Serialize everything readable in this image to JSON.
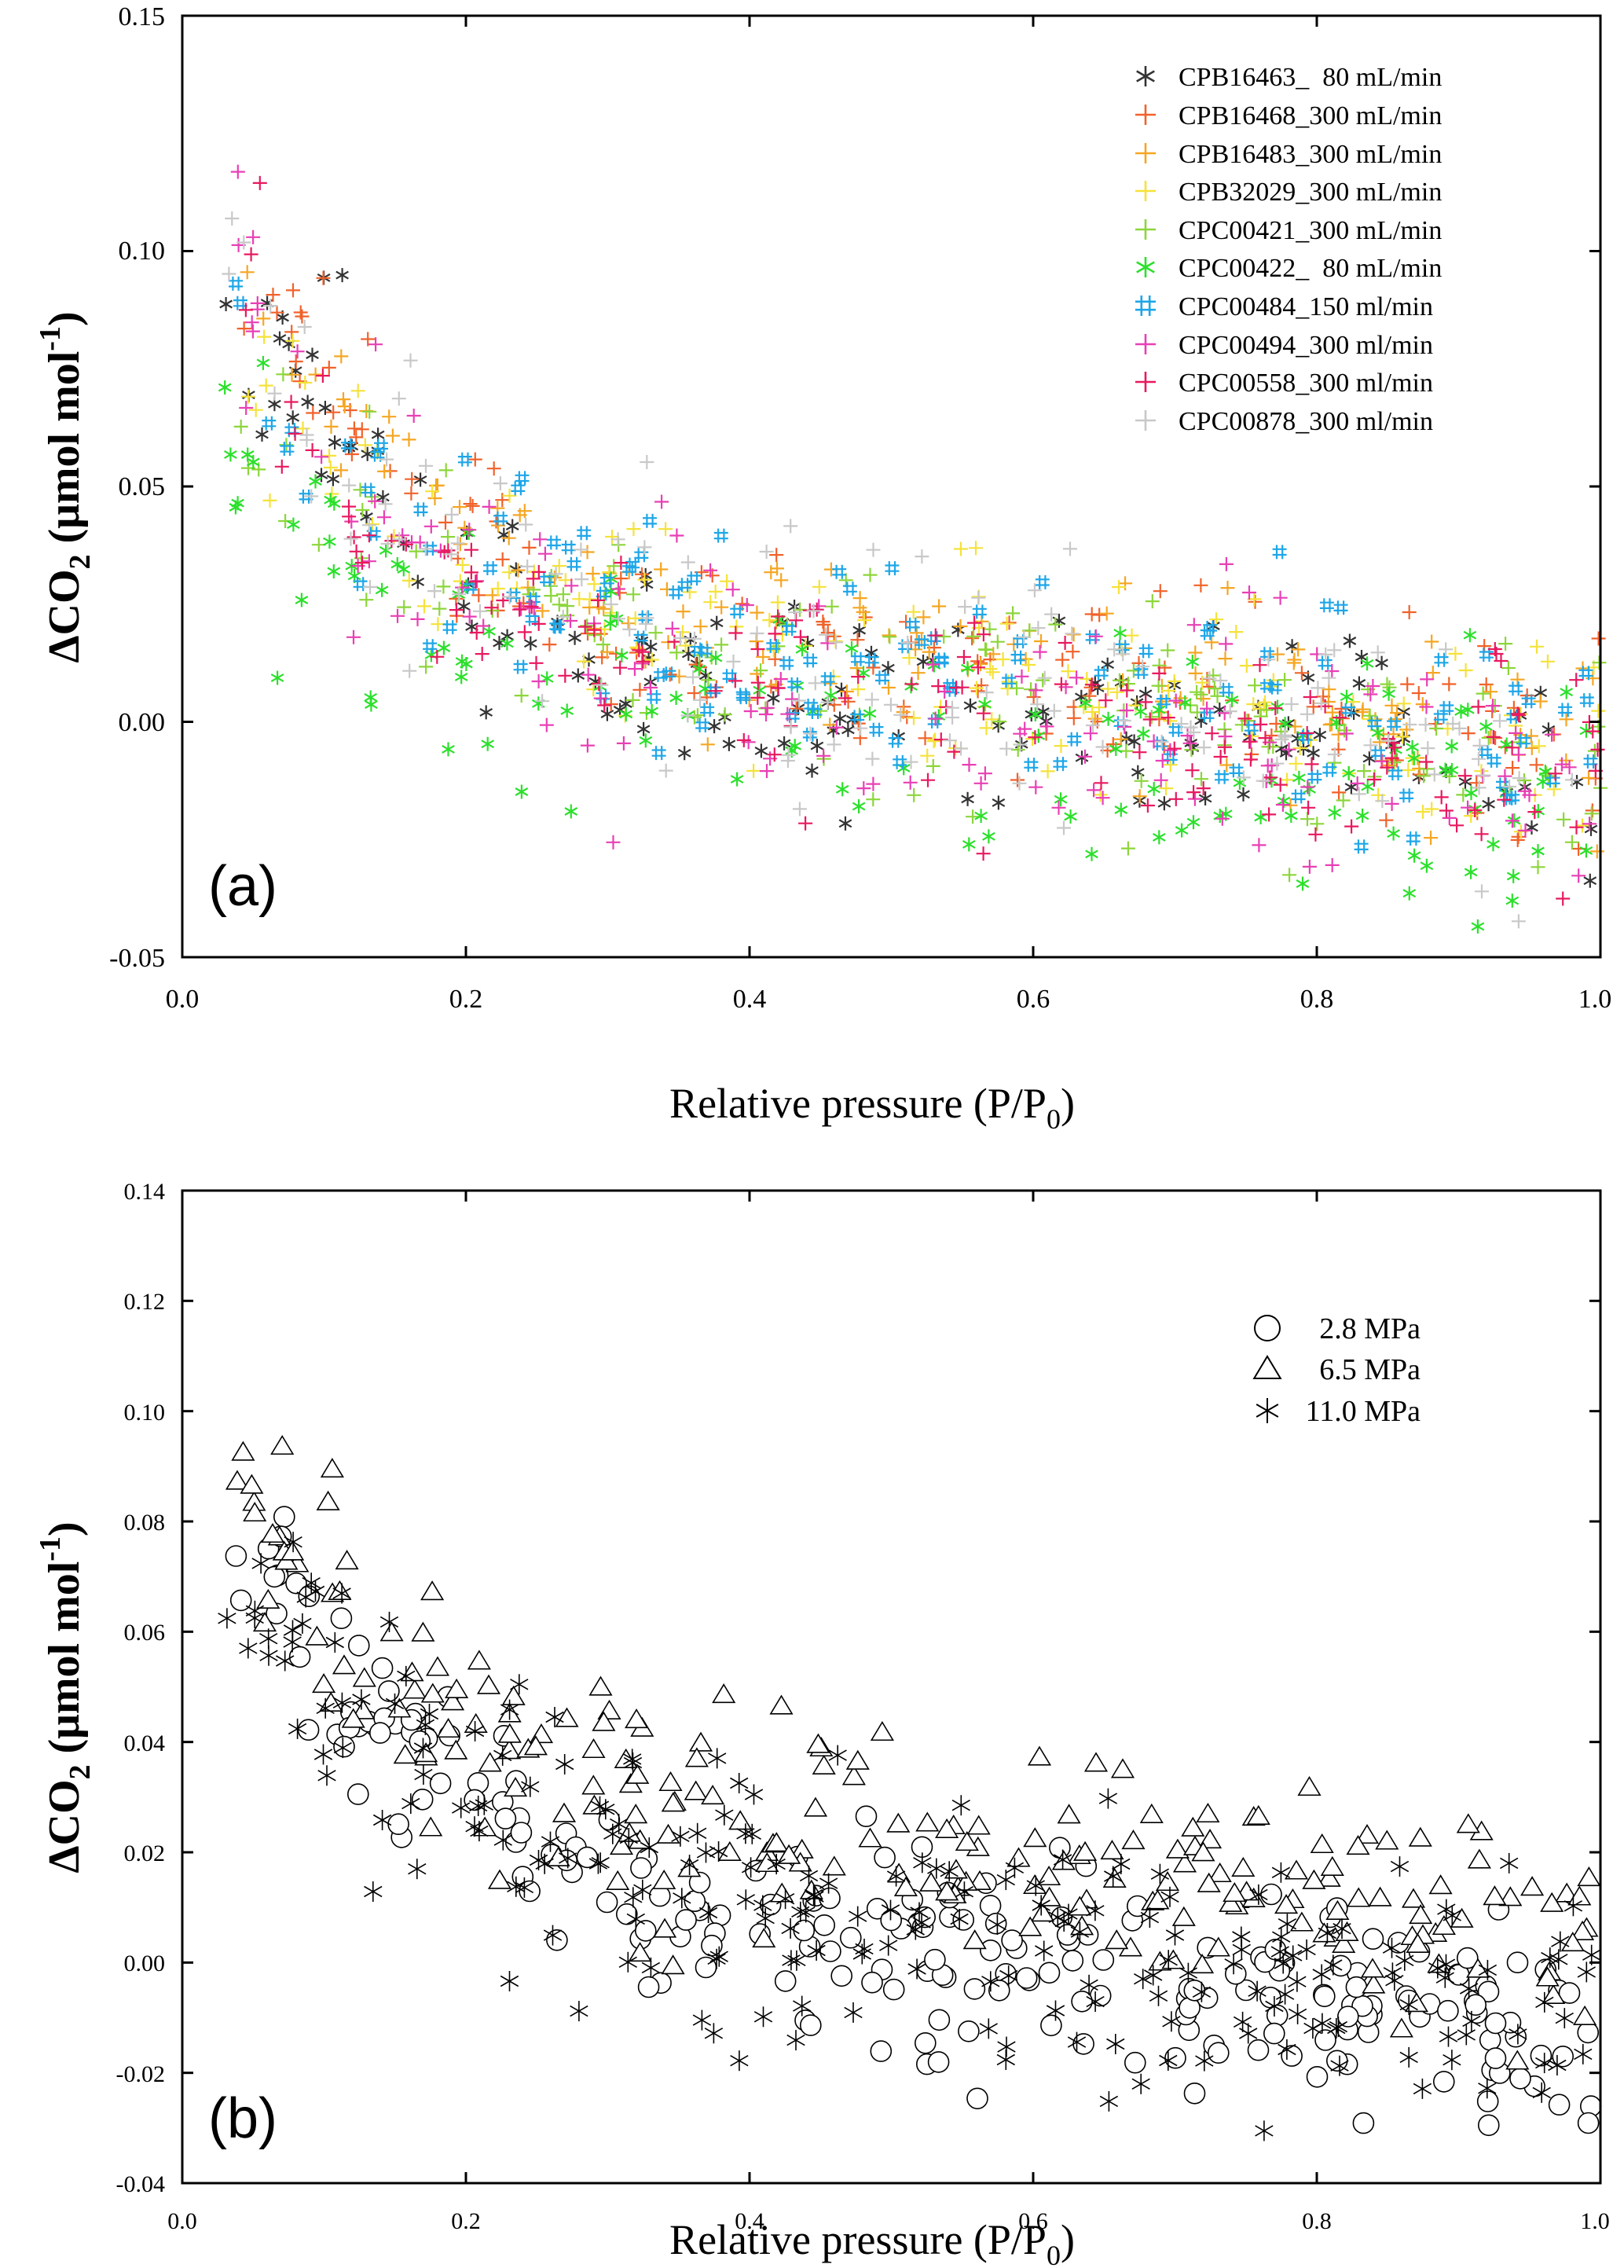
{
  "chart_data": [
    {
      "type": "scatter",
      "panel_label": "(a)",
      "xlabel": "Relative pressure (P/P",
      "xlabel_sub": "0",
      "xlabel_close": ")",
      "ylabel_pre": "ΔCO",
      "ylabel_sub": "2",
      "ylabel_unit": " (μmol mol",
      "ylabel_sup": "-1",
      "ylabel_close": ")",
      "xlim": [
        0.0,
        1.0
      ],
      "ylim": [
        -0.05,
        0.15
      ],
      "xticks": [
        "0.0",
        "0.2",
        "0.4",
        "0.6",
        "0.8",
        "1.0"
      ],
      "yticks": [
        "-0.05",
        "0.00",
        "0.05",
        "0.10",
        "0.15"
      ],
      "legend_position": "top-right",
      "series": [
        {
          "name": "CPB16463_  80 mL/min",
          "marker": "asterisk",
          "color": "#333333",
          "seed": 11,
          "y0": 0.12,
          "yend": -0.012,
          "spread": 0.011
        },
        {
          "name": "CPB16468_300 mL/min",
          "marker": "plus",
          "color": "#F0622A",
          "seed": 23,
          "y0": 0.14,
          "yend": -0.005,
          "spread": 0.01
        },
        {
          "name": "CPB16483_300 mL/min",
          "marker": "plus",
          "color": "#F5A623",
          "seed": 37,
          "y0": 0.13,
          "yend": -0.004,
          "spread": 0.01
        },
        {
          "name": "CPB32029_300 mL/min",
          "marker": "plus",
          "color": "#F5E23A",
          "seed": 41,
          "y0": 0.11,
          "yend": -0.006,
          "spread": 0.011
        },
        {
          "name": "CPC00421_300 mL/min",
          "marker": "plus",
          "color": "#8CD63A",
          "seed": 53,
          "y0": 0.09,
          "yend": -0.008,
          "spread": 0.011
        },
        {
          "name": "CPC00422_  80 mL/min",
          "marker": "asterisk",
          "color": "#2BE02B",
          "seed": 67,
          "y0": 0.075,
          "yend": -0.018,
          "spread": 0.013
        },
        {
          "name": "CPC00484_150 ml/min",
          "marker": "hash",
          "color": "#1EA6E8",
          "seed": 79,
          "y0": 0.1,
          "yend": -0.005,
          "spread": 0.011
        },
        {
          "name": "CPC00494_300 ml/min",
          "marker": "plus",
          "color": "#E83FB5",
          "seed": 83,
          "y0": 0.12,
          "yend": -0.012,
          "spread": 0.013
        },
        {
          "name": "CPC00558_300 ml/min",
          "marker": "plus",
          "color": "#E8195E",
          "seed": 97,
          "y0": 0.11,
          "yend": -0.015,
          "spread": 0.013
        },
        {
          "name": "CPC00878_300 ml/min",
          "marker": "plus",
          "color": "#C8C8C8",
          "seed": 101,
          "y0": 0.12,
          "yend": -0.008,
          "spread": 0.014
        }
      ]
    },
    {
      "type": "scatter",
      "panel_label": "(b)",
      "xlabel": "Relative pressure (P/P",
      "xlabel_sub": "0",
      "xlabel_close": ")",
      "ylabel_pre": "ΔCO",
      "ylabel_sub": "2",
      "ylabel_unit": " (μmol mol",
      "ylabel_sup": "-1",
      "ylabel_close": ")",
      "xlim": [
        0.0,
        1.0
      ],
      "ylim": [
        -0.04,
        0.14
      ],
      "xticks": [
        "0.0",
        "0.2",
        "0.4",
        "0.6",
        "0.8",
        "1.0"
      ],
      "yticks": [
        "-0.04",
        "-0.02",
        "0.00",
        "0.02",
        "0.04",
        "0.06",
        "0.08",
        "0.10",
        "0.12",
        "0.14"
      ],
      "legend_position": "top-right",
      "series": [
        {
          "name": "2.8 MPa",
          "marker": "circle",
          "color": "#000000",
          "seed": 131,
          "y0": 0.1,
          "yend": -0.012,
          "spread": 0.009
        },
        {
          "name": "6.5 MPa",
          "marker": "triangle",
          "color": "#000000",
          "seed": 149,
          "y0": 0.11,
          "yend": 0.004,
          "spread": 0.011
        },
        {
          "name": "11.0 MPa",
          "marker": "asterisk",
          "color": "#000000",
          "seed": 167,
          "y0": 0.1,
          "yend": -0.01,
          "spread": 0.013
        }
      ]
    }
  ]
}
